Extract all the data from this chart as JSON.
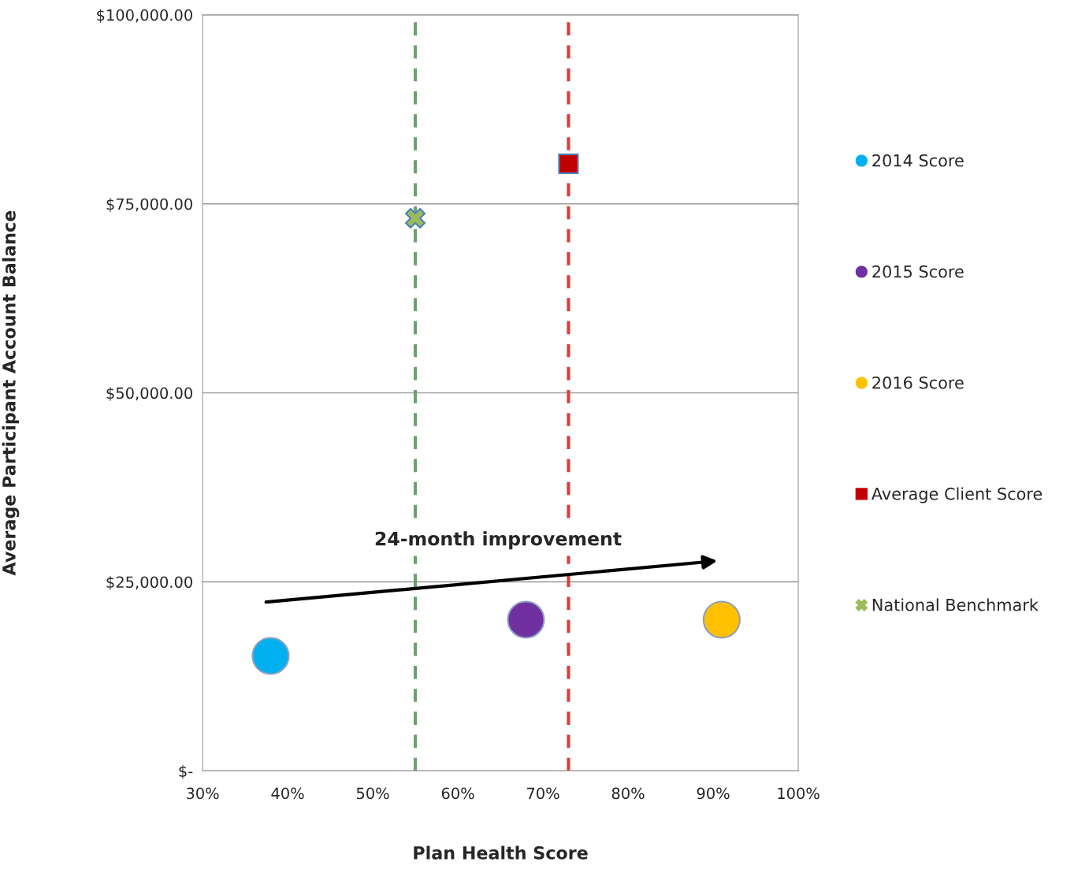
{
  "chart_data": {
    "type": "scatter",
    "xlabel": "Plan Health Score",
    "ylabel": "Average Participant Account Balance",
    "xlim": [
      30,
      100
    ],
    "xticks": [
      {
        "value": 30,
        "label": "30%"
      },
      {
        "value": 40,
        "label": "40%"
      },
      {
        "value": 50,
        "label": "50%"
      },
      {
        "value": 60,
        "label": "60%"
      },
      {
        "value": 70,
        "label": "70%"
      },
      {
        "value": 80,
        "label": "80%"
      },
      {
        "value": 90,
        "label": "90%"
      },
      {
        "value": 100,
        "label": "100%"
      }
    ],
    "ylim": [
      0,
      100000
    ],
    "yticks": [
      {
        "value": 0,
        "label": "$-"
      },
      {
        "value": 25000,
        "label": "$25,000.00"
      },
      {
        "value": 50000,
        "label": "$50,000.00"
      },
      {
        "value": 75000,
        "label": "$75,000.00"
      },
      {
        "value": 100000,
        "label": "$100,000.00"
      }
    ],
    "grid": "y",
    "legend": "right",
    "series": [
      {
        "name": "2014 Score",
        "color": "#00b0f0",
        "marker": "circle",
        "x": [
          38
        ],
        "values": [
          15200
        ]
      },
      {
        "name": "2015 Score",
        "color": "#7030a0",
        "marker": "circle",
        "x": [
          68
        ],
        "values": [
          20000
        ]
      },
      {
        "name": "2016 Score",
        "color": "#ffc000",
        "marker": "circle",
        "x": [
          91
        ],
        "values": [
          20000
        ]
      },
      {
        "name": "Average Client Score",
        "color": "#c00000",
        "marker": "square",
        "x": [
          73
        ],
        "values": [
          80300
        ]
      },
      {
        "name": "National Benchmark",
        "color": "#9bbb59",
        "marker": "cross",
        "x": [
          55
        ],
        "values": [
          73100
        ]
      }
    ],
    "ref_lines": [
      {
        "axis": "x",
        "value": 55,
        "color": "#6f9f6f",
        "line_style": "dashed"
      },
      {
        "axis": "x",
        "value": 73,
        "color": "#e03c3c",
        "line_style": "dashed"
      }
    ],
    "annotations": [
      "24-month improvement"
    ]
  }
}
